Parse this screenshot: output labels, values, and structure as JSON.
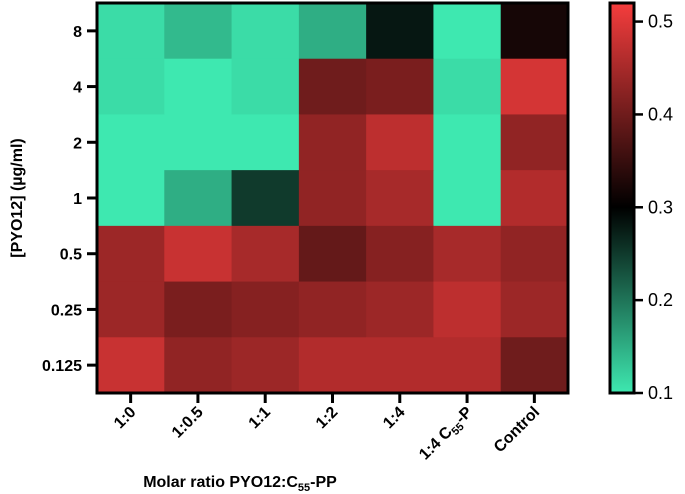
{
  "chart_data": {
    "type": "heatmap",
    "xlabel": "Molar ratio PYO12:C55-PP",
    "xlabel_parts": {
      "prefix": "Molar ratio PYO12:C",
      "sub": "55",
      "suffix": "-PP"
    },
    "ylabel": "[PYO12] (µg/ml)",
    "x_categories": [
      "1:0",
      "1:0.5",
      "1:1",
      "1:2",
      "1:4",
      "1:4 C55-P",
      "Control"
    ],
    "x_category_parts": [
      {
        "prefix": "1:0"
      },
      {
        "prefix": "1:0.5"
      },
      {
        "prefix": "1:1"
      },
      {
        "prefix": "1:2"
      },
      {
        "prefix": "1:4"
      },
      {
        "prefix": "1:4 C",
        "sub": "55",
        "suffix": "-P"
      },
      {
        "prefix": "Control"
      }
    ],
    "y_categories": [
      "8",
      "4",
      "2",
      "1",
      "0.5",
      "0.25",
      "0.125"
    ],
    "values": [
      [
        0.11,
        0.14,
        0.11,
        0.15,
        0.28,
        0.1,
        0.32
      ],
      [
        0.11,
        0.1,
        0.11,
        0.4,
        0.41,
        0.11,
        0.49
      ],
      [
        0.1,
        0.1,
        0.1,
        0.43,
        0.47,
        0.1,
        0.43
      ],
      [
        0.1,
        0.15,
        0.25,
        0.43,
        0.45,
        0.1,
        0.46
      ],
      [
        0.44,
        0.48,
        0.45,
        0.39,
        0.42,
        0.45,
        0.43
      ],
      [
        0.44,
        0.41,
        0.42,
        0.43,
        0.44,
        0.47,
        0.44
      ],
      [
        0.48,
        0.43,
        0.44,
        0.46,
        0.46,
        0.46,
        0.4
      ]
    ],
    "colorbar": {
      "min": 0.1,
      "max": 0.52,
      "mid": 0.3,
      "ticks": [
        0.1,
        0.2,
        0.3,
        0.4,
        0.5
      ],
      "tick_labels": [
        "0.1",
        "0.2",
        "0.3",
        "0.4",
        "0.5"
      ],
      "colors": {
        "low": "#3ee8b0",
        "mid": "#000000",
        "high": "#f53d3d"
      }
    },
    "legend_position": "right",
    "grid": false
  }
}
